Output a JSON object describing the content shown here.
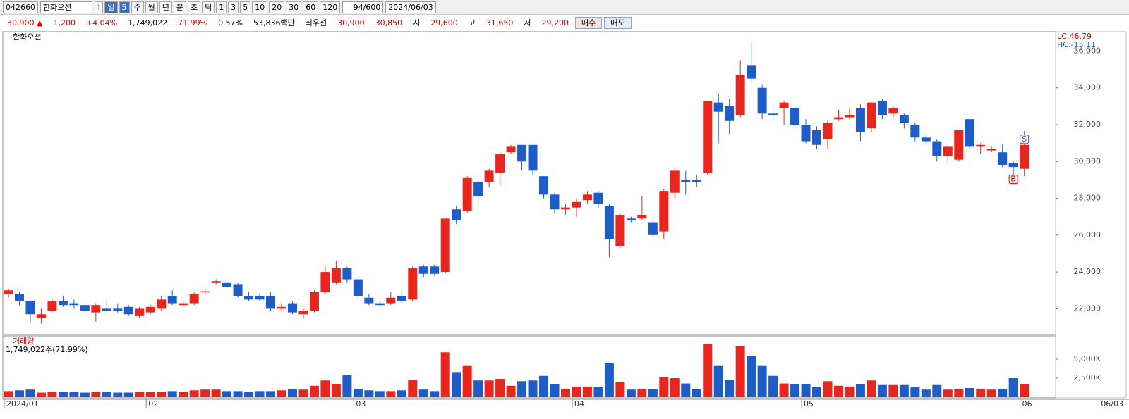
{
  "toolbar": {
    "code": "042660",
    "name": "한화오션",
    "buttons": [
      "!",
      "일",
      "5",
      "주",
      "월",
      "년",
      "분",
      "초",
      "틱",
      "1",
      "3",
      "5",
      "10",
      "20",
      "30",
      "60",
      "120"
    ],
    "count": "94/600",
    "date": "2024/06/03"
  },
  "quote": [
    {
      "text": "30,900 ▲",
      "color": "#d00000"
    },
    {
      "text": "1,200",
      "color": "#d00000"
    },
    {
      "text": "+4.04%",
      "color": "#d00000"
    },
    {
      "text": "1,749,022",
      "color": "#000000"
    },
    {
      "text": "71.99%",
      "color": "#d00000"
    },
    {
      "text": "0.57%",
      "color": "#000000"
    },
    {
      "text": "53,836백만",
      "color": "#000000"
    },
    {
      "text": "최우선",
      "color": "#000000"
    },
    {
      "text": "30,900",
      "color": "#d00000"
    },
    {
      "text": "30,850",
      "color": "#d00000"
    },
    {
      "text": "시",
      "color": "#000000"
    },
    {
      "text": "29,600",
      "color": "#d00000"
    },
    {
      "text": "고",
      "color": "#000000"
    },
    {
      "text": "31,650",
      "color": "#d00000"
    },
    {
      "text": "저",
      "color": "#000000"
    },
    {
      "text": "29,200",
      "color": "#d00000"
    }
  ],
  "order_buttons": [
    "매수",
    "매도"
  ],
  "chart_data": [
    {
      "type": "candlestick",
      "title": "한화오션",
      "indicators": [
        "LC:46.79",
        "HC:-15.11"
      ],
      "up_color": "#e8261e",
      "down_color": "#1e5cc8",
      "categories": [
        "2024/01",
        null,
        null,
        null,
        null,
        null,
        null,
        null,
        null,
        null,
        null,
        null,
        null,
        "02",
        null,
        null,
        null,
        null,
        null,
        null,
        null,
        null,
        null,
        null,
        null,
        null,
        null,
        null,
        null,
        null,
        null,
        null,
        "03",
        null,
        null,
        null,
        null,
        null,
        null,
        null,
        null,
        null,
        null,
        null,
        null,
        null,
        null,
        null,
        null,
        null,
        null,
        null,
        "04",
        null,
        null,
        null,
        null,
        null,
        null,
        null,
        null,
        null,
        null,
        null,
        null,
        null,
        null,
        null,
        null,
        null,
        null,
        null,
        null,
        "05",
        null,
        null,
        null,
        null,
        null,
        null,
        null,
        null,
        null,
        null,
        null,
        null,
        null,
        null,
        null,
        null,
        null,
        null,
        null,
        "06"
      ],
      "end_label": "06/03",
      "open": [
        22800,
        22800,
        22400,
        21500,
        21900,
        22400,
        22300,
        22200,
        21800,
        22000,
        22000,
        22100,
        21600,
        21800,
        22000,
        22700,
        22200,
        22300,
        22900,
        23400,
        23400,
        23300,
        22700,
        22700,
        22700,
        22000,
        22300,
        21700,
        21900,
        22900,
        23400,
        24200,
        23600,
        22600,
        22300,
        22300,
        22700,
        22500,
        24300,
        24300,
        24000,
        27400,
        27300,
        28900,
        28900,
        29400,
        30500,
        30900,
        30900,
        29200,
        28200,
        27400,
        27500,
        27900,
        28300,
        27600,
        25400,
        26900,
        26900,
        26700,
        26200,
        28300,
        29000,
        29000,
        29400,
        33200,
        33000,
        32500,
        35200,
        34000,
        32600,
        32900,
        32900,
        32000,
        31700,
        31200,
        32300,
        32400,
        32900,
        31800,
        33300,
        32600,
        32500,
        32000,
        31300,
        31100,
        30300,
        30100,
        32300,
        30800,
        30600,
        30500,
        29900,
        29600
      ],
      "high": [
        23100,
        22900,
        22400,
        22000,
        22500,
        22700,
        22500,
        22300,
        22300,
        22500,
        22300,
        22200,
        22100,
        22200,
        22700,
        23000,
        22400,
        22900,
        23100,
        23600,
        23500,
        23400,
        22900,
        22800,
        22900,
        22300,
        22400,
        22000,
        23000,
        24300,
        24600,
        24300,
        23700,
        22800,
        22500,
        22900,
        22900,
        24300,
        24400,
        24400,
        26900,
        27600,
        29200,
        29000,
        29600,
        30500,
        30900,
        30900,
        30900,
        29200,
        28300,
        27700,
        28000,
        28400,
        28400,
        27700,
        27200,
        27000,
        28100,
        26800,
        28500,
        29700,
        29500,
        29300,
        33300,
        33700,
        33400,
        35500,
        36500,
        34200,
        33100,
        33300,
        33000,
        32300,
        31900,
        32200,
        32800,
        32900,
        33100,
        33200,
        33400,
        33000,
        32600,
        32100,
        31500,
        31200,
        30900,
        31700,
        32300,
        31000,
        30800,
        30900,
        30000,
        31650
      ],
      "low": [
        22600,
        22200,
        21300,
        21200,
        21800,
        22100,
        22000,
        21800,
        21300,
        21800,
        21800,
        21600,
        21500,
        21700,
        21900,
        22200,
        22100,
        22200,
        22800,
        23300,
        23100,
        22600,
        22400,
        22400,
        21900,
        21900,
        21700,
        21500,
        21800,
        22800,
        23300,
        23400,
        22600,
        22200,
        22100,
        22200,
        22300,
        22400,
        23700,
        23800,
        23900,
        26600,
        27200,
        27700,
        28600,
        28700,
        30400,
        29500,
        29300,
        28000,
        27200,
        27100,
        27000,
        27700,
        27500,
        24800,
        25300,
        26700,
        26800,
        25900,
        25800,
        28000,
        28200,
        28600,
        29300,
        31000,
        31500,
        32400,
        34300,
        32300,
        32100,
        32000,
        31800,
        31000,
        30700,
        30700,
        32200,
        32300,
        31100,
        31600,
        32300,
        32400,
        31800,
        31100,
        30900,
        30000,
        29900,
        30000,
        30700,
        30400,
        30500,
        29700,
        28800,
        29200
      ],
      "close": [
        23000,
        22400,
        21700,
        21700,
        22400,
        22200,
        22200,
        21900,
        22200,
        21900,
        21900,
        21700,
        22000,
        22100,
        22500,
        22300,
        22300,
        22800,
        22950,
        23500,
        23200,
        22700,
        22500,
        22500,
        22000,
        22100,
        21800,
        21900,
        22900,
        24000,
        24200,
        23600,
        22700,
        22300,
        22200,
        22600,
        22400,
        24200,
        23900,
        23900,
        26900,
        26800,
        29100,
        28100,
        29500,
        30400,
        30800,
        30000,
        29500,
        28200,
        27400,
        27500,
        27800,
        28200,
        27700,
        25800,
        27100,
        26800,
        27100,
        26000,
        28400,
        29500,
        28900,
        28900,
        33300,
        32700,
        32200,
        34700,
        34500,
        32600,
        32500,
        33200,
        32000,
        31100,
        30900,
        32100,
        32400,
        32500,
        31600,
        33200,
        32500,
        32900,
        32100,
        31300,
        31100,
        30300,
        30800,
        31700,
        30800,
        30900,
        30700,
        29800,
        29700,
        30900
      ],
      "signals": [
        {
          "text": "B",
          "index": 92
        },
        {
          "text": "S",
          "index": 93
        }
      ],
      "ylim": [
        20600,
        37050
      ],
      "yticks": [
        {
          "value": 22000,
          "label": "22,000"
        },
        {
          "value": 24000,
          "label": "24,000"
        },
        {
          "value": 26000,
          "label": "26,000"
        },
        {
          "value": 28000,
          "label": "28,000"
        },
        {
          "value": 30000,
          "label": "30,000"
        },
        {
          "value": 32000,
          "label": "32,000"
        },
        {
          "value": 34000,
          "label": "34,000"
        },
        {
          "value": 36000,
          "label": "36,000"
        }
      ]
    },
    {
      "type": "volume",
      "title": "거래량",
      "subtitle": "1,749,022주(71.99%)",
      "values": [
        800,
        900,
        1000,
        600,
        700,
        700,
        700,
        600,
        700,
        700,
        600,
        600,
        700,
        700,
        700,
        800,
        700,
        900,
        1000,
        1000,
        800,
        800,
        700,
        800,
        800,
        900,
        1100,
        1000,
        1500,
        2200,
        1700,
        2900,
        1100,
        900,
        800,
        800,
        900,
        2300,
        1000,
        800,
        5900,
        3300,
        4100,
        2200,
        2200,
        2400,
        1500,
        2100,
        2200,
        2800,
        1700,
        1100,
        1400,
        1400,
        1300,
        4500,
        2000,
        1000,
        1100,
        1100,
        2600,
        2500,
        1800,
        1100,
        7000,
        4100,
        2300,
        6700,
        5400,
        4100,
        2800,
        1800,
        1700,
        1700,
        1300,
        2100,
        1500,
        1400,
        1700,
        2200,
        1600,
        1600,
        1600,
        1300,
        1000,
        1600,
        1000,
        1100,
        1200,
        1100,
        1000,
        1100,
        2500,
        1749.022
      ],
      "ylim": [
        0,
        7960
      ],
      "yticks": [
        {
          "value": 2500,
          "label": "2,500K"
        },
        {
          "value": 5000,
          "label": "5,000K"
        }
      ]
    }
  ]
}
